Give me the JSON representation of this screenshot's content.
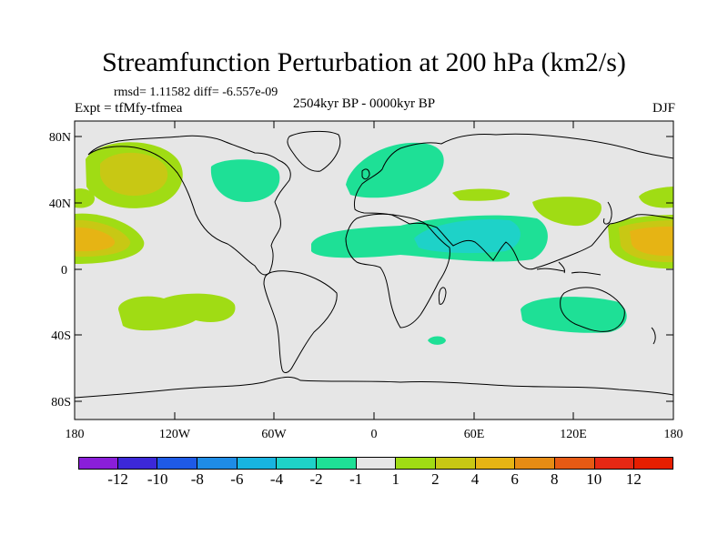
{
  "title": "Streamfunction Perturbation at 200 hPa (km2/s)",
  "stats": "rmsd= 1.11582 diff= -6.557e-09",
  "experiment": "Expt = tfMfy-tfmea",
  "period": "2504kyr BP - 0000kyr BP",
  "season": "DJF",
  "lat_ticks": [
    "80N",
    "40N",
    "0",
    "40S",
    "80S"
  ],
  "lon_ticks": [
    "180",
    "120W",
    "60W",
    "0",
    "60E",
    "120E",
    "180"
  ],
  "colorbar": {
    "labels": [
      "-12",
      "-10",
      "-8",
      "-6",
      "-4",
      "-2",
      "-1",
      "1",
      "2",
      "4",
      "6",
      "8",
      "10",
      "12"
    ],
    "colors": [
      "#8a1ed9",
      "#3c28d8",
      "#1e5ae6",
      "#1e8ce6",
      "#18b4e0",
      "#1ed2c8",
      "#1ee096",
      "#e6e6e6",
      "#a0dc14",
      "#c8c814",
      "#e6b414",
      "#e68c14",
      "#e65a14",
      "#e62814",
      "#e61e00"
    ]
  },
  "colors": {
    "background_field": "#e6e6e6",
    "coast": "#000000"
  }
}
